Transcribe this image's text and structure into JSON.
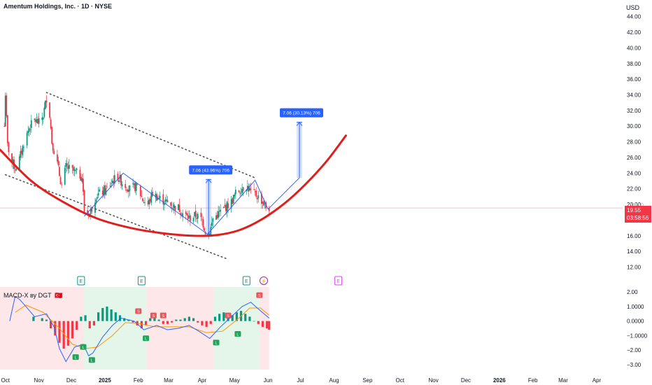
{
  "header": {
    "title": "Amentum Holdings, Inc. · 1D · NYSE",
    "currency": "USD"
  },
  "price_badge": {
    "price": "19.55",
    "countdown": "03:58:56",
    "color": "#f23645"
  },
  "ghost_tick": "20.00",
  "earnings_markers": [
    {
      "date": "2024-12-10",
      "label": "E",
      "state": "past",
      "color": "#089981"
    },
    {
      "date": "2025-02-04",
      "label": "E",
      "state": "past",
      "color": "#089981"
    },
    {
      "date": "2025-05-12",
      "label": "E",
      "state": "past",
      "color": "#089981"
    },
    {
      "date": "2025-05-28",
      "label": "⚡",
      "state": "event",
      "color": "#9c27b0"
    },
    {
      "date": "2025-08-05",
      "label": "E",
      "state": "upcoming",
      "color": "#e040fb"
    }
  ],
  "annotations": {
    "measure_1": {
      "label": "7.06 (43.96%) 706",
      "date": "2025-04-07",
      "from": 16.1,
      "to": 23.2
    },
    "measure_2": {
      "label": "7.06 (30.13%) 706",
      "date": "2025-06-30",
      "from": 23.4,
      "to": 30.5
    }
  },
  "macd": {
    "label": "MACD-X ву DGT",
    "flag": "🇹🇷",
    "yticks": [
      "2.00",
      "1.0000",
      "0.0000",
      "−1.0000",
      "−2.00",
      "−3.00"
    ],
    "colors": {
      "macd": "#2962ff",
      "signal": "#ff9800",
      "hist_pos": "#089981",
      "hist_neg": "#f23645"
    }
  },
  "chart_data": {
    "type": "candlestick",
    "title": "Amentum Holdings, Inc. · 1D · NYSE",
    "currency": "USD",
    "y_ticks": [
      "44.00",
      "42.00",
      "40.00",
      "38.00",
      "36.00",
      "34.00",
      "32.00",
      "30.00",
      "28.00",
      "26.00",
      "24.00",
      "22.00",
      "20.00",
      "18.00",
      "16.00",
      "14.00",
      "12.00"
    ],
    "ylim": [
      10.8,
      45.4
    ],
    "xlim": [
      "2024-09-26",
      "2026-04-25"
    ],
    "x_ticks": [
      {
        "date": "2024-10-01",
        "label": "Oct"
      },
      {
        "date": "2024-11-01",
        "label": "Nov"
      },
      {
        "date": "2024-12-01",
        "label": "Dec"
      },
      {
        "date": "2025-01-01",
        "label": "2025"
      },
      {
        "date": "2025-02-01",
        "label": "Feb"
      },
      {
        "date": "2025-03-01",
        "label": "Mar"
      },
      {
        "date": "2025-04-01",
        "label": "Apr"
      },
      {
        "date": "2025-05-01",
        "label": "May"
      },
      {
        "date": "2025-06-01",
        "label": "Jun"
      },
      {
        "date": "2025-07-01",
        "label": "Jul"
      },
      {
        "date": "2025-08-01",
        "label": "Aug"
      },
      {
        "date": "2025-09-01",
        "label": "Sep"
      },
      {
        "date": "2025-10-01",
        "label": "Oct"
      },
      {
        "date": "2025-11-01",
        "label": "Nov"
      },
      {
        "date": "2025-12-01",
        "label": "Dec"
      },
      {
        "date": "2026-01-01",
        "label": "2026"
      },
      {
        "date": "2026-02-01",
        "label": "Feb"
      },
      {
        "date": "2026-03-01",
        "label": "Mar"
      },
      {
        "date": "2026-04-01",
        "label": "Apr"
      }
    ],
    "last_price": 19.55,
    "colors": {
      "up": "#089981",
      "down": "#f23645",
      "cup": "#e01e1e",
      "pattern": "#2962ff",
      "trend": "#555555"
    },
    "price_path": [
      [
        "2024-09-30",
        30.0
      ],
      [
        "2024-10-01",
        34.2
      ],
      [
        "2024-10-03",
        27.5
      ],
      [
        "2024-10-07",
        25.5
      ],
      [
        "2024-10-10",
        24.6
      ],
      [
        "2024-10-14",
        25.8
      ],
      [
        "2024-10-18",
        27.8
      ],
      [
        "2024-10-23",
        29.8
      ],
      [
        "2024-10-28",
        30.8
      ],
      [
        "2024-11-01",
        30.4
      ],
      [
        "2024-11-05",
        31.4
      ],
      [
        "2024-11-08",
        33.6
      ],
      [
        "2024-11-11",
        31.5
      ],
      [
        "2024-11-13",
        28.0
      ],
      [
        "2024-11-18",
        25.2
      ],
      [
        "2024-11-22",
        22.4
      ],
      [
        "2024-11-26",
        24.8
      ],
      [
        "2024-12-02",
        24.3
      ],
      [
        "2024-12-06",
        24.0
      ],
      [
        "2024-12-11",
        23.5
      ],
      [
        "2024-12-13",
        19.2
      ],
      [
        "2024-12-18",
        18.8
      ],
      [
        "2024-12-24",
        21.2
      ],
      [
        "2025-01-02",
        21.8
      ],
      [
        "2025-01-08",
        23.0
      ],
      [
        "2025-01-13",
        23.6
      ],
      [
        "2025-01-17",
        22.8
      ],
      [
        "2025-01-24",
        22.0
      ],
      [
        "2025-01-31",
        22.3
      ],
      [
        "2025-02-05",
        20.6
      ],
      [
        "2025-02-10",
        20.0
      ],
      [
        "2025-02-14",
        21.4
      ],
      [
        "2025-02-20",
        20.8
      ],
      [
        "2025-02-26",
        20.4
      ],
      [
        "2025-03-04",
        19.8
      ],
      [
        "2025-03-10",
        19.6
      ],
      [
        "2025-03-14",
        18.9
      ],
      [
        "2025-03-20",
        18.2
      ],
      [
        "2025-03-26",
        18.6
      ],
      [
        "2025-04-01",
        18.0
      ],
      [
        "2025-04-04",
        16.6
      ],
      [
        "2025-04-08",
        16.4
      ],
      [
        "2025-04-11",
        18.2
      ],
      [
        "2025-04-16",
        18.8
      ],
      [
        "2025-04-22",
        19.6
      ],
      [
        "2025-04-28",
        20.3
      ],
      [
        "2025-05-02",
        21.4
      ],
      [
        "2025-05-07",
        22.0
      ],
      [
        "2025-05-12",
        22.4
      ],
      [
        "2025-05-16",
        21.6
      ],
      [
        "2025-05-21",
        21.2
      ],
      [
        "2025-05-27",
        20.4
      ],
      [
        "2025-05-30",
        19.6
      ],
      [
        "2025-06-02",
        19.55
      ]
    ],
    "cup_curve": [
      [
        "2024-09-26",
        27.0
      ],
      [
        "2024-10-25",
        23.0
      ],
      [
        "2024-11-25",
        20.2
      ],
      [
        "2024-12-25",
        18.2
      ],
      [
        "2025-01-25",
        17.0
      ],
      [
        "2025-02-25",
        16.3
      ],
      [
        "2025-03-25",
        16.0
      ],
      [
        "2025-04-15",
        16.1
      ],
      [
        "2025-05-05",
        16.7
      ],
      [
        "2025-05-25",
        18.0
      ],
      [
        "2025-06-15",
        20.0
      ],
      [
        "2025-07-05",
        22.5
      ],
      [
        "2025-07-25",
        25.5
      ],
      [
        "2025-08-12",
        28.8
      ]
    ],
    "pattern_lines": [
      [
        [
          "2024-12-13",
          18.5
        ],
        [
          "2025-01-18",
          24.0
        ],
        [
          "2025-04-06",
          16.2
        ],
        [
          "2025-05-20",
          23.1
        ],
        [
          "2025-06-01",
          19.4
        ],
        [
          "2025-06-30",
          23.4
        ]
      ]
    ],
    "trendlines": [
      {
        "name": "upper",
        "points": [
          [
            "2024-11-08",
            34.3
          ],
          [
            "2025-05-20",
            23.4
          ]
        ]
      },
      {
        "name": "lower",
        "points": [
          [
            "2024-10-01",
            23.8
          ],
          [
            "2025-04-25",
            13.0
          ]
        ]
      }
    ],
    "macd_ylim": [
      -3.35,
      2.35
    ],
    "macd_line": [
      [
        "2024-10-05",
        0.0
      ],
      [
        "2024-10-10",
        1.7
      ],
      [
        "2024-10-14",
        1.5
      ],
      [
        "2024-10-20",
        1.0
      ],
      [
        "2024-10-28",
        0.3
      ],
      [
        "2024-11-08",
        0.5
      ],
      [
        "2024-11-15",
        -0.4
      ],
      [
        "2024-11-20",
        -1.9
      ],
      [
        "2024-11-26",
        -2.8
      ],
      [
        "2024-12-04",
        -1.8
      ],
      [
        "2024-12-12",
        -1.6
      ],
      [
        "2024-12-17",
        -2.4
      ],
      [
        "2024-12-21",
        -2.2
      ],
      [
        "2024-12-30",
        -1.1
      ],
      [
        "2025-01-08",
        -0.3
      ],
      [
        "2025-01-16",
        0.2
      ],
      [
        "2025-01-28",
        0.0
      ],
      [
        "2025-02-06",
        -0.6
      ],
      [
        "2025-02-18",
        -0.3
      ],
      [
        "2025-02-28",
        -0.6
      ],
      [
        "2025-03-10",
        -0.5
      ],
      [
        "2025-03-20",
        -0.3
      ],
      [
        "2025-03-31",
        -0.8
      ],
      [
        "2025-04-08",
        -1.2
      ],
      [
        "2025-04-18",
        -0.4
      ],
      [
        "2025-04-28",
        0.3
      ],
      [
        "2025-05-08",
        1.0
      ],
      [
        "2025-05-16",
        1.3
      ],
      [
        "2025-05-22",
        0.9
      ],
      [
        "2025-06-02",
        0.2
      ]
    ],
    "signal_line": [
      [
        "2024-10-10",
        0.6
      ],
      [
        "2024-10-20",
        1.1
      ],
      [
        "2024-11-05",
        0.6
      ],
      [
        "2024-11-20",
        -0.5
      ],
      [
        "2024-12-02",
        -1.6
      ],
      [
        "2024-12-14",
        -1.9
      ],
      [
        "2024-12-25",
        -1.8
      ],
      [
        "2025-01-08",
        -1.0
      ],
      [
        "2025-01-20",
        -0.1
      ],
      [
        "2025-02-03",
        -0.2
      ],
      [
        "2025-02-17",
        -0.4
      ],
      [
        "2025-03-03",
        -0.4
      ],
      [
        "2025-03-20",
        -0.4
      ],
      [
        "2025-04-05",
        -0.8
      ],
      [
        "2025-04-20",
        -0.7
      ],
      [
        "2025-05-05",
        0.2
      ],
      [
        "2025-05-15",
        0.9
      ],
      [
        "2025-05-25",
        0.9
      ],
      [
        "2025-06-02",
        0.4
      ]
    ],
    "macd_hist": [
      [
        "2024-10-27",
        0.3
      ],
      [
        "2024-11-04",
        0.2
      ],
      [
        "2024-11-08",
        0.1
      ],
      [
        "2024-11-12",
        -0.5
      ],
      [
        "2024-11-16",
        -1.0
      ],
      [
        "2024-11-20",
        -1.5
      ],
      [
        "2024-11-24",
        -1.9
      ],
      [
        "2024-11-28",
        -1.7
      ],
      [
        "2024-12-02",
        -1.2
      ],
      [
        "2024-12-06",
        -0.6
      ],
      [
        "2024-12-10",
        0.3
      ],
      [
        "2024-12-14",
        0.4
      ],
      [
        "2024-12-18",
        -0.5
      ],
      [
        "2024-12-22",
        -0.3
      ],
      [
        "2024-12-26",
        0.6
      ],
      [
        "2024-12-30",
        0.9
      ],
      [
        "2025-01-03",
        1.0
      ],
      [
        "2025-01-07",
        0.8
      ],
      [
        "2025-01-11",
        0.6
      ],
      [
        "2025-01-15",
        0.4
      ],
      [
        "2025-01-19",
        0.2
      ],
      [
        "2025-01-23",
        0.1
      ],
      [
        "2025-01-27",
        -0.1
      ],
      [
        "2025-01-31",
        -0.3
      ],
      [
        "2025-02-04",
        -0.5
      ],
      [
        "2025-02-08",
        -0.3
      ],
      [
        "2025-02-12",
        0.2
      ],
      [
        "2025-02-16",
        0.3
      ],
      [
        "2025-02-20",
        0.1
      ],
      [
        "2025-02-24",
        -0.2
      ],
      [
        "2025-02-28",
        -0.2
      ],
      [
        "2025-03-04",
        -0.1
      ],
      [
        "2025-03-08",
        0.1
      ],
      [
        "2025-03-12",
        0.1
      ],
      [
        "2025-03-16",
        0.2
      ],
      [
        "2025-03-20",
        0.3
      ],
      [
        "2025-03-24",
        0.2
      ],
      [
        "2025-03-28",
        -0.1
      ],
      [
        "2025-04-01",
        -0.3
      ],
      [
        "2025-04-05",
        -0.4
      ],
      [
        "2025-04-09",
        -0.2
      ],
      [
        "2025-04-13",
        0.3
      ],
      [
        "2025-04-17",
        0.5
      ],
      [
        "2025-04-21",
        0.6
      ],
      [
        "2025-04-25",
        0.5
      ],
      [
        "2025-04-29",
        0.4
      ],
      [
        "2025-05-03",
        0.6
      ],
      [
        "2025-05-07",
        0.7
      ],
      [
        "2025-05-11",
        0.5
      ],
      [
        "2025-05-15",
        0.3
      ],
      [
        "2025-05-19",
        0.0
      ],
      [
        "2025-05-23",
        -0.2
      ],
      [
        "2025-05-27",
        -0.4
      ],
      [
        "2025-05-31",
        -0.5
      ],
      [
        "2025-06-02",
        -0.6
      ]
    ],
    "macd_signals": [
      {
        "date": "2024-12-05",
        "value": -2.1,
        "label": "L",
        "side": "buy"
      },
      {
        "date": "2024-12-12",
        "value": -1.4,
        "label": "L",
        "side": "buy"
      },
      {
        "date": "2024-12-20",
        "value": -2.3,
        "label": "L",
        "side": "buy"
      },
      {
        "date": "2025-02-01",
        "value": 0.3,
        "label": "S",
        "side": "sell"
      },
      {
        "date": "2025-02-08",
        "value": -0.8,
        "label": "L",
        "side": "buy"
      },
      {
        "date": "2025-02-15",
        "value": 0.0,
        "label": "S",
        "side": "sell"
      },
      {
        "date": "2025-02-24",
        "value": 0.0,
        "label": "S",
        "side": "sell"
      },
      {
        "date": "2025-04-14",
        "value": -1.1,
        "label": "L",
        "side": "buy"
      },
      {
        "date": "2025-04-25",
        "value": 0.0,
        "label": "S",
        "side": "sell"
      },
      {
        "date": "2025-05-04",
        "value": -0.5,
        "label": "L",
        "side": "buy"
      },
      {
        "date": "2025-05-24",
        "value": 1.4,
        "label": "S",
        "side": "sell"
      }
    ],
    "macd_zones": [
      {
        "from": "2024-09-26",
        "to": "2024-12-12",
        "color": "#fde7e9"
      },
      {
        "from": "2024-12-12",
        "to": "2025-02-08",
        "color": "#e4f5ea"
      },
      {
        "from": "2025-02-08",
        "to": "2025-04-12",
        "color": "#fde7e9"
      },
      {
        "from": "2025-04-12",
        "to": "2025-05-24",
        "color": "#e4f5ea"
      },
      {
        "from": "2025-05-24",
        "to": "2025-06-02",
        "color": "#fde7e9"
      }
    ]
  }
}
